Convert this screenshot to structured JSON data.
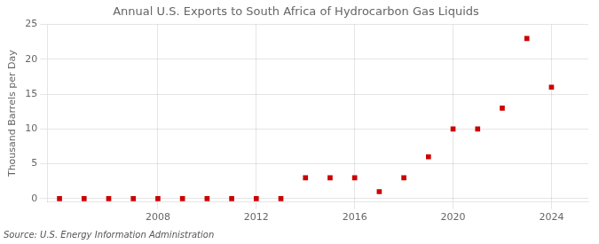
{
  "chart_data": {
    "type": "scatter",
    "title": "Annual U.S. Exports to South Africa of Hydrocarbon Gas Liquids",
    "ylabel": "Thousand Barrels per Day",
    "annotation": "Source: U.S. Energy Information Administration",
    "x": [
      2004,
      2005,
      2006,
      2007,
      2008,
      2009,
      2010,
      2011,
      2012,
      2013,
      2014,
      2015,
      2016,
      2017,
      2018,
      2019,
      2020,
      2021,
      2022,
      2023,
      2024
    ],
    "values": [
      0,
      0,
      0,
      0,
      0,
      0,
      0,
      0,
      0,
      0,
      3,
      3,
      3,
      1,
      3,
      6,
      10,
      10,
      13,
      23,
      16
    ],
    "color": "#cc0000",
    "marker": "square",
    "xlim": [
      2003.5,
      2025.5
    ],
    "ylim": [
      -0.5,
      25
    ],
    "xticks": [
      2008,
      2012,
      2016,
      2020,
      2024
    ],
    "yticks": [
      0,
      5,
      10,
      15,
      20,
      25
    ],
    "grid": true
  }
}
